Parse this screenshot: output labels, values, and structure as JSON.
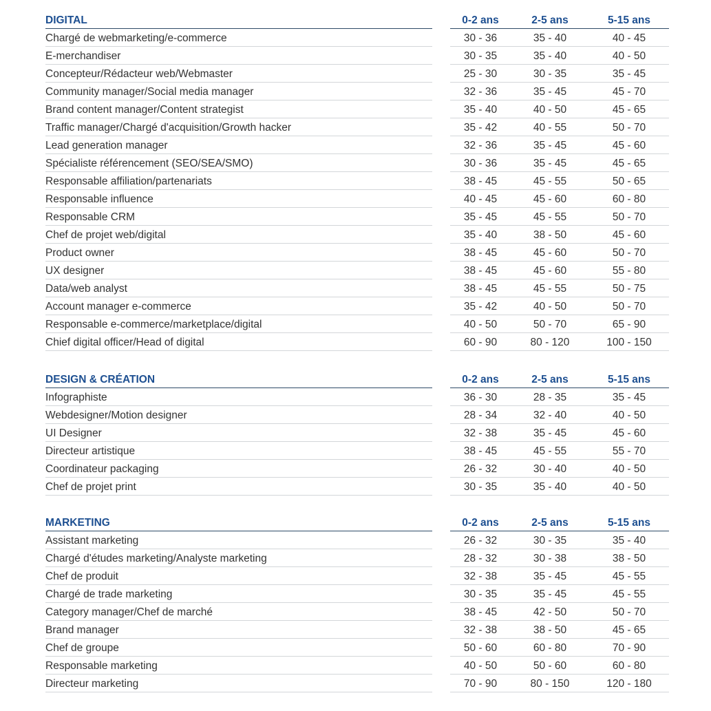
{
  "colors": {
    "heading": "#1d4f91",
    "text": "#333333",
    "rule": "#2d4a66",
    "separator": "#d3d6d9"
  },
  "columns": [
    "0-2 ans",
    "2-5 ans",
    "5-15 ans"
  ],
  "sections": [
    {
      "title": "DIGITAL",
      "rows": [
        [
          "Chargé de webmarketing/e-commerce",
          "30 - 36",
          "35 - 40",
          "40 - 45"
        ],
        [
          "E-merchandiser",
          "30 - 35",
          "35 - 40",
          "40 - 50"
        ],
        [
          "Concepteur/Rédacteur web/Webmaster",
          "25 - 30",
          "30 - 35",
          "35 - 45"
        ],
        [
          "Community manager/Social media manager",
          "32 - 36",
          "35 - 45",
          "45 - 70"
        ],
        [
          "Brand content manager/Content strategist",
          "35 - 40",
          "40 - 50",
          "45 - 65"
        ],
        [
          "Traffic manager/Chargé d'acquisition/Growth hacker",
          "35 - 42",
          "40 - 55",
          "50 - 70"
        ],
        [
          "Lead generation manager",
          "32 - 36",
          "35 - 45",
          "45 - 60"
        ],
        [
          "Spécialiste référencement (SEO/SEA/SMO)",
          "30 - 36",
          "35 - 45",
          "45 - 65"
        ],
        [
          "Responsable affiliation/partenariats",
          "38 - 45",
          "45 - 55",
          "50 - 65"
        ],
        [
          "Responsable influence",
          "40 - 45",
          "45 - 60",
          "60 - 80"
        ],
        [
          "Responsable CRM",
          "35 - 45",
          "45 - 55",
          "50 - 70"
        ],
        [
          "Chef de projet web/digital",
          "35 - 40",
          "38 - 50",
          "45 - 60"
        ],
        [
          "Product owner",
          "38 - 45",
          "45 - 60",
          "50 - 70"
        ],
        [
          "UX designer",
          "38 - 45",
          "45 - 60",
          "55 - 80"
        ],
        [
          "Data/web analyst",
          "38 - 45",
          "45 - 55",
          "50 - 75"
        ],
        [
          "Account manager e-commerce",
          "35 - 42",
          "40 - 50",
          "50 - 70"
        ],
        [
          "Responsable e-commerce/marketplace/digital",
          "40 - 50",
          "50 - 70",
          "65 - 90"
        ],
        [
          "Chief digital officer/Head of digital",
          "60 - 90",
          "80 - 120",
          "100 - 150"
        ]
      ]
    },
    {
      "title": "DESIGN & CRÉATION",
      "rows": [
        [
          "Infographiste",
          "36 - 30",
          "28 - 35",
          "35 - 45"
        ],
        [
          "Webdesigner/Motion designer",
          "28 - 34",
          "32 - 40",
          "40 - 50"
        ],
        [
          "UI Designer",
          "32 - 38",
          "35 - 45",
          "45 - 60"
        ],
        [
          "Directeur artistique",
          "38 - 45",
          "45 - 55",
          "55 - 70"
        ],
        [
          "Coordinateur packaging",
          "26 - 32",
          "30 - 40",
          "40 - 50"
        ],
        [
          "Chef de projet print",
          "30 - 35",
          "35 - 40",
          "40 - 50"
        ]
      ]
    },
    {
      "title": "MARKETING",
      "rows": [
        [
          "Assistant marketing",
          "26 - 32",
          "30 - 35",
          "35 - 40"
        ],
        [
          "Chargé d'études marketing/Analyste marketing",
          "28 - 32",
          "30 - 38",
          "38 - 50"
        ],
        [
          "Chef de produit",
          "32 - 38",
          "35 - 45",
          "45 - 55"
        ],
        [
          "Chargé de trade marketing",
          "30 - 35",
          "35 - 45",
          "45 - 55"
        ],
        [
          "Category manager/Chef de marché",
          "38 - 45",
          "42 - 50",
          "50 - 70"
        ],
        [
          "Brand manager",
          "32 - 38",
          "38 - 50",
          "45 - 65"
        ],
        [
          "Chef de groupe",
          "50 - 60",
          "60 - 80",
          "70 - 90"
        ],
        [
          "Responsable marketing",
          "40 - 50",
          "50 - 60",
          "60 - 80"
        ],
        [
          "Directeur marketing",
          "70 - 90",
          "80 - 150",
          "120 - 180"
        ]
      ]
    }
  ]
}
